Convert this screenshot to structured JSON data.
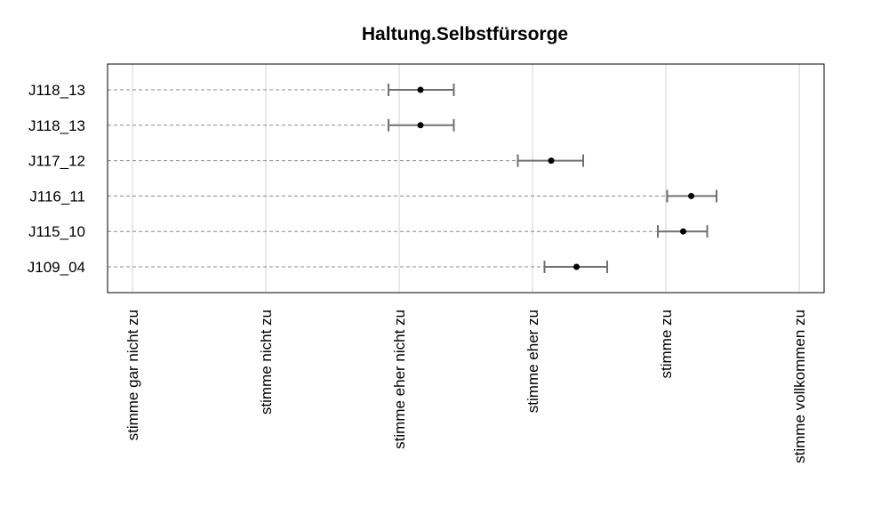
{
  "chart_data": {
    "type": "scatter",
    "title": "Haltung.Selbstfürsorge",
    "xlabel": "",
    "ylabel": "",
    "x_ticks": [
      "stimme gar nicht zu",
      "stimme nicht zu",
      "stimme eher nicht zu",
      "stimme eher zu",
      "stimme zu",
      "stimme vollkommen zu"
    ],
    "xlim": [
      0.8,
      6.2
    ],
    "grid": true,
    "items": [
      {
        "label": "J118_13",
        "mean": 3.16,
        "lower": 2.92,
        "upper": 3.41
      },
      {
        "label": "J118_13",
        "mean": 3.16,
        "lower": 2.92,
        "upper": 3.41
      },
      {
        "label": "J117_12",
        "mean": 4.14,
        "lower": 3.89,
        "upper": 4.38
      },
      {
        "label": "J116_11",
        "mean": 5.19,
        "lower": 5.01,
        "upper": 5.38
      },
      {
        "label": "J115_10",
        "mean": 5.13,
        "lower": 4.94,
        "upper": 5.31
      },
      {
        "label": "J109_04",
        "mean": 4.33,
        "lower": 4.09,
        "upper": 4.56
      }
    ]
  }
}
